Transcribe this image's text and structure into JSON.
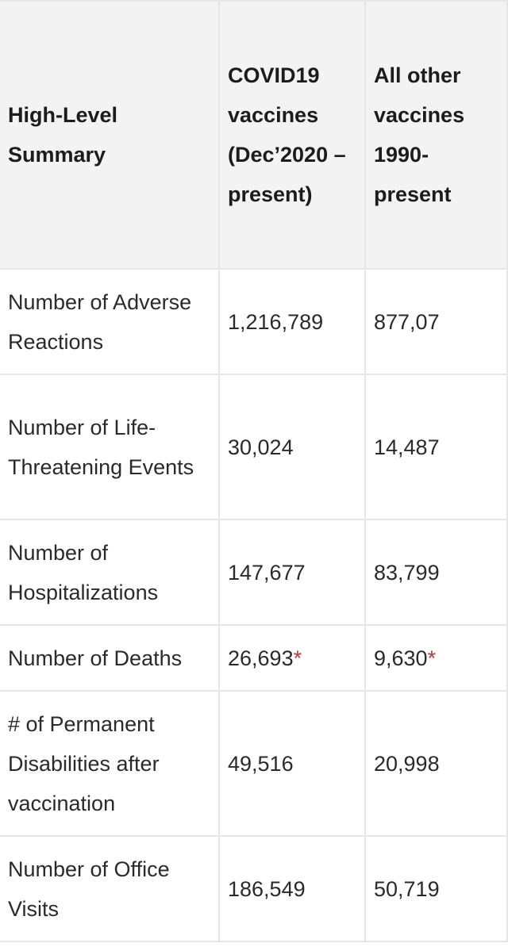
{
  "table": {
    "headers": [
      "High-Level Summary",
      "COVID19 vaccines (Dec’2020 – present)",
      "All other vaccines 1990-present"
    ],
    "rows": [
      {
        "label": "Number of Adverse Reactions",
        "covid": "1,216,789",
        "other": "877,07",
        "covid_mark": "",
        "other_mark": ""
      },
      {
        "label": "Number of Life-Threatening Events",
        "covid": "30,024",
        "other": "14,487",
        "covid_mark": "",
        "other_mark": ""
      },
      {
        "label": "Number of Hospitalizations",
        "covid": "147,677",
        "other": "83,799",
        "covid_mark": "",
        "other_mark": ""
      },
      {
        "label": "Number of Deaths",
        "covid": "26,693",
        "other": "9,630",
        "covid_mark": "*",
        "other_mark": "*"
      },
      {
        "label": "# of Permanent Disabilities after vaccination",
        "covid": "49,516",
        "other": "20,998",
        "covid_mark": "",
        "other_mark": ""
      },
      {
        "label": "Number of Office Visits",
        "covid": "186,549",
        "other": "50,719",
        "covid_mark": "",
        "other_mark": ""
      }
    ]
  },
  "colors": {
    "header_bg": "#f3f3f3",
    "border": "#e6e6e6",
    "asterisk": "#b03a3a"
  }
}
